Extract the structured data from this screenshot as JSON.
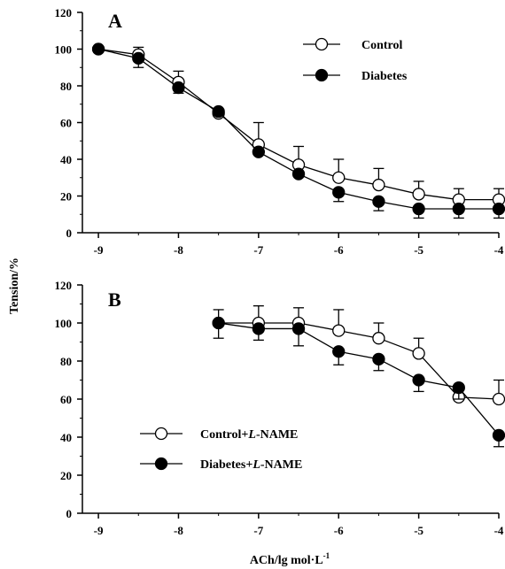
{
  "shared": {
    "ylabel": "Tension/%",
    "xlabel_main": "ACh/lg mol·L",
    "xlabel_sup": "-1"
  },
  "chart_data": [
    {
      "type": "line",
      "panel_label": "A",
      "x": [
        -9,
        -8.5,
        -8,
        -7.5,
        -7,
        -6.5,
        -6,
        -5.5,
        -5,
        -4.5,
        -4
      ],
      "xlim": [
        -9.2,
        -4
      ],
      "xticks": [
        -9,
        -8,
        -7,
        -6,
        -5,
        -4
      ],
      "xtick_labels": [
        "-9",
        "-8",
        "-7",
        "-6",
        "-5",
        "-4"
      ],
      "ylim": [
        0,
        120
      ],
      "yticks": [
        0,
        20,
        40,
        60,
        80,
        100,
        120
      ],
      "ytick_labels": [
        "0",
        "20",
        "40",
        "60",
        "80",
        "100",
        "120"
      ],
      "legend_position": "top-right",
      "series": [
        {
          "name": "Control",
          "marker": "open-circle",
          "values": [
            100,
            97,
            82,
            65,
            48,
            37,
            30,
            26,
            21,
            18,
            18
          ],
          "error_up": [
            0,
            4,
            6,
            0,
            12,
            10,
            10,
            9,
            7,
            6,
            6
          ]
        },
        {
          "name": "Diabetes",
          "marker": "filled-circle",
          "values": [
            100,
            95,
            79,
            66,
            44,
            32,
            22,
            17,
            13,
            13,
            13
          ],
          "error_down": [
            0,
            5,
            3,
            0,
            0,
            0,
            5,
            5,
            5,
            5,
            5
          ]
        }
      ]
    },
    {
      "type": "line",
      "panel_label": "B",
      "x": [
        -7.5,
        -7,
        -6.5,
        -6,
        -5.5,
        -5,
        -4.5,
        -4
      ],
      "xlim": [
        -9.2,
        -4
      ],
      "xticks": [
        -9,
        -8,
        -7,
        -6,
        -5,
        -4
      ],
      "xtick_labels": [
        "-9",
        "-8",
        "-7",
        "-6",
        "-5",
        "-4"
      ],
      "ylim": [
        0,
        120
      ],
      "yticks": [
        0,
        20,
        40,
        60,
        80,
        100,
        120
      ],
      "ytick_labels": [
        "0",
        "20",
        "40",
        "60",
        "80",
        "100",
        "120"
      ],
      "legend_position": "bottom-left",
      "series": [
        {
          "name_prefix": "Control+",
          "name_italic": "L",
          "name_suffix": "-NAME",
          "marker": "open-circle",
          "values": [
            100,
            100,
            100,
            96,
            92,
            84,
            61,
            60
          ],
          "error_up": [
            7,
            9,
            8,
            11,
            8,
            8,
            0,
            10
          ]
        },
        {
          "name_prefix": "Diabetes+",
          "name_italic": "L",
          "name_suffix": "-NAME",
          "marker": "filled-circle",
          "values": [
            100,
            97,
            97,
            85,
            81,
            70,
            66,
            41
          ],
          "error_down": [
            8,
            6,
            9,
            7,
            6,
            6,
            6,
            6
          ]
        }
      ]
    }
  ]
}
